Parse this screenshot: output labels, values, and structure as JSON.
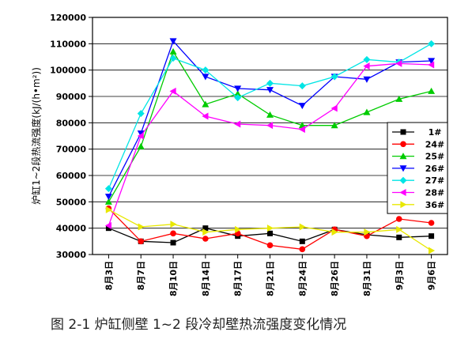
{
  "caption": "图 2-1  炉缸侧壁 1~2 段冷却壁热流强度变化情况",
  "chart_data": {
    "type": "line",
    "title": "",
    "xlabel": "",
    "ylabel": "炉缸1~2段热流强度(kJ/(h•m²))",
    "ylim": [
      30000,
      120000
    ],
    "yticks": [
      30000,
      40000,
      50000,
      60000,
      70000,
      80000,
      90000,
      100000,
      110000,
      120000
    ],
    "grid": "horizontal",
    "legend_position": "right",
    "categories": [
      "8月3日",
      "8月7日",
      "8月10日",
      "8月14日",
      "8月17日",
      "8月21日",
      "8月24日",
      "8月26日",
      "8月31日",
      "9月3日",
      "9月6日"
    ],
    "series": [
      {
        "name": "1#",
        "color": "#000000",
        "marker": "square",
        "values": [
          40000,
          35000,
          34500,
          40000,
          37000,
          38000,
          35000,
          39500,
          37500,
          36500,
          37000
        ]
      },
      {
        "name": "24#",
        "color": "#ff0000",
        "marker": "circle",
        "values": [
          47500,
          35000,
          38000,
          36000,
          38000,
          33500,
          32000,
          39500,
          37000,
          43500,
          42000
        ]
      },
      {
        "name": "25#",
        "color": "#00cc00",
        "marker": "triangle",
        "values": [
          50000,
          71000,
          107000,
          87000,
          91000,
          83000,
          79000,
          79000,
          84000,
          89000,
          92000
        ]
      },
      {
        "name": "26#",
        "color": "#0000ff",
        "marker": "triangle-down",
        "values": [
          52000,
          76000,
          111000,
          97500,
          93000,
          92500,
          86500,
          97500,
          96500,
          103000,
          103500
        ]
      },
      {
        "name": "27#",
        "color": "#00e5e5",
        "marker": "diamond",
        "values": [
          55000,
          83500,
          104500,
          100000,
          89500,
          95000,
          94000,
          97500,
          104000,
          103000,
          110000
        ]
      },
      {
        "name": "28#",
        "color": "#ff00ff",
        "marker": "triangle-left",
        "values": [
          41000,
          75000,
          92000,
          82500,
          79500,
          79000,
          77500,
          85500,
          101500,
          102500,
          102000
        ]
      },
      {
        "name": "36#",
        "color": "#e8e800",
        "marker": "triangle-right",
        "values": [
          47000,
          40500,
          41500,
          38500,
          39500,
          40000,
          40500,
          38500,
          38500,
          39500,
          31500
        ]
      }
    ]
  }
}
